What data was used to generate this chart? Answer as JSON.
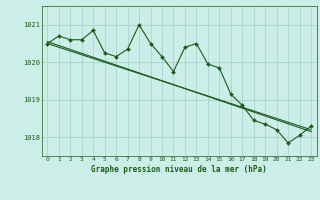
{
  "title": "Graphe pression niveau de la mer (hPa)",
  "background_color": "#cceee8",
  "grid_color": "#aad4ce",
  "line_color": "#1a5c1a",
  "xlim": [
    -0.5,
    23.5
  ],
  "ylim": [
    1017.5,
    1021.5
  ],
  "yticks": [
    1018,
    1019,
    1020,
    1021
  ],
  "xticks": [
    0,
    1,
    2,
    3,
    4,
    5,
    6,
    7,
    8,
    9,
    10,
    11,
    12,
    13,
    14,
    15,
    16,
    17,
    18,
    19,
    20,
    21,
    22,
    23
  ],
  "series1_x": [
    0,
    1,
    2,
    3,
    4,
    5,
    6,
    7,
    8,
    9,
    10,
    11,
    12,
    13,
    14,
    15,
    16,
    17,
    18,
    19,
    20,
    21,
    22,
    23
  ],
  "series1_y": [
    1020.5,
    1020.7,
    1020.6,
    1020.6,
    1020.85,
    1020.25,
    1020.15,
    1020.35,
    1021.0,
    1020.5,
    1020.15,
    1019.75,
    1020.4,
    1020.5,
    1019.95,
    1019.85,
    1019.15,
    1018.85,
    1018.45,
    1018.35,
    1018.2,
    1017.85,
    1018.05,
    1018.3
  ],
  "trend_x": [
    0,
    23
  ],
  "trend_y": [
    1020.55,
    1018.15
  ],
  "trend2_x": [
    0,
    23
  ],
  "trend2_y": [
    1020.5,
    1018.2
  ]
}
